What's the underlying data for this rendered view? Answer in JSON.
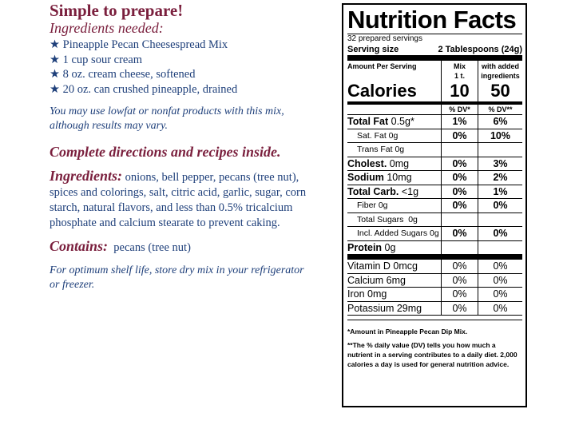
{
  "left": {
    "heading": "Simple to prepare!",
    "ingredients_needed_heading": "Ingredients needed:",
    "needed_items": [
      "Pineapple Pecan Cheesespread Mix",
      "1 cup sour cream",
      "8 oz. cream cheese, softened",
      "20 oz. can crushed pineapple, drained"
    ],
    "star": "★",
    "lowfat_note_1": "You may use lowfat or nonfat products with this mix,",
    "lowfat_note_2": "although results may vary.",
    "directions": "Complete directions and recipes inside.",
    "ingredients_label": "Ingredients:",
    "ingredients_text": " onions, bell pepper, pecans (tree nut), spices and colorings, salt, citric acid, garlic, sugar, corn starch, natural flavors, and less than 0.5% tricalcium phosphate and calcium stearate to prevent caking.",
    "contains_label": "Contains:",
    "contains_text": "  pecans (tree nut)",
    "storage_note_1": "For optimum shelf life, store dry mix in your refrigerator",
    "storage_note_2": "or freezer."
  },
  "nutrition": {
    "title": "Nutrition Facts",
    "servings": "32 prepared servings",
    "serving_size_label": "Serving size",
    "serving_size_value": "2 Tablespoons (24g)",
    "amount_per_serving": "Amount Per Serving",
    "col_mix_1": "Mix",
    "col_mix_2": "1 t.",
    "col_added_1": "with added",
    "col_added_2": "ingredients",
    "calories_label": "Calories",
    "calories_mix": "10",
    "calories_added": "50",
    "dv_mix": "% DV*",
    "dv_added": "% DV**",
    "rows": [
      {
        "bold": "Total Fat",
        "rest": " 0.5g*",
        "mix": "1%",
        "added": "6%"
      },
      {
        "bold": "",
        "rest": "Sat. Fat 0g",
        "mix": "0%",
        "added": "10%"
      },
      {
        "bold": "",
        "rest": "Trans Fat 0g",
        "mix": "",
        "added": ""
      },
      {
        "bold": "Cholest.",
        "rest": " 0mg",
        "mix": "0%",
        "added": "3%"
      },
      {
        "bold": "Sodium",
        "rest": " 10mg",
        "mix": "0%",
        "added": "2%"
      },
      {
        "bold": "Total Carb.",
        "rest": " <1g",
        "mix": "0%",
        "added": "1%"
      },
      {
        "bold": "",
        "rest": "Fiber 0g",
        "mix": "0%",
        "added": "0%"
      },
      {
        "bold": "",
        "rest": "Total Sugars  0g",
        "mix": "",
        "added": ""
      },
      {
        "bold": "",
        "rest": "Incl. Added Sugars 0g",
        "mix": "0%",
        "added": "0%"
      }
    ],
    "protein_bold": "Protein",
    "protein_rest": " 0g",
    "vitamins": [
      {
        "label": "Vitamin D 0mcg",
        "mix": "0%",
        "added": "0%"
      },
      {
        "label": "Calcium 6mg",
        "mix": "0%",
        "added": "0%"
      },
      {
        "label": "Iron 0mg",
        "mix": "0%",
        "added": "0%"
      },
      {
        "label": "Potassium 29mg",
        "mix": "0%",
        "added": "0%"
      }
    ],
    "footnote_1": "*Amount in Pineapple Pecan Dip Mix.",
    "footnote_2": "**The % daily value (DV) tells you how much a nutrient in a serving contributes to a daily diet. 2,000 calories a day is used for general nutrition advice."
  }
}
